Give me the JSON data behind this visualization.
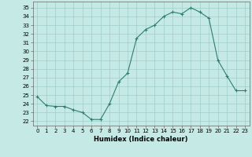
{
  "x": [
    0,
    1,
    2,
    3,
    4,
    5,
    6,
    7,
    8,
    9,
    10,
    11,
    12,
    13,
    14,
    15,
    16,
    17,
    18,
    19,
    20,
    21,
    22,
    23
  ],
  "y": [
    24.8,
    23.8,
    23.7,
    23.7,
    23.3,
    23.0,
    22.2,
    22.2,
    24.0,
    26.5,
    27.5,
    31.5,
    32.5,
    33.0,
    34.0,
    34.5,
    34.3,
    35.0,
    34.5,
    33.8,
    29.0,
    27.2,
    25.5,
    25.5
  ],
  "line_color": "#2e7d6e",
  "marker": "+",
  "marker_size": 3,
  "marker_lw": 0.8,
  "line_width": 0.8,
  "bg_color": "#c5eae6",
  "grid_color": "#a0ccc8",
  "xlabel": "Humidex (Indice chaleur)",
  "ylabel_ticks": [
    22,
    23,
    24,
    25,
    26,
    27,
    28,
    29,
    30,
    31,
    32,
    33,
    34,
    35
  ],
  "ylim": [
    21.5,
    35.7
  ],
  "xlim": [
    -0.5,
    23.5
  ],
  "tick_fontsize": 5.0,
  "xlabel_fontsize": 6.0
}
